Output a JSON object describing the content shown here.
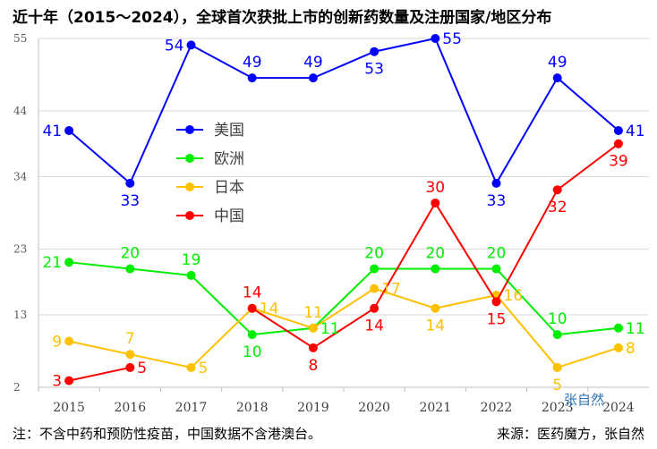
{
  "title": "近十年（2015～2024），全球首次获批上市的创新药数量及注册国家/地区分布",
  "footer": {
    "note": "注：不含中药和预防性疫苗，中国数据不含港澳台。",
    "source": "来源：医药魔方，张自然"
  },
  "watermark": "张自然",
  "chart_data": {
    "type": "line",
    "x": [
      "2015",
      "2016",
      "2017",
      "2018",
      "2019",
      "2020",
      "2021",
      "2022",
      "2023",
      "2024"
    ],
    "y_ticks": [
      2,
      13,
      23,
      34,
      44,
      55
    ],
    "ylim": [
      2,
      55
    ],
    "grid": "horizontal",
    "legend_position": "left-center",
    "series": [
      {
        "name": "美国",
        "color": "#0000ff",
        "values": [
          41,
          33,
          54,
          49,
          49,
          53,
          55,
          33,
          49,
          41
        ],
        "label_pos": [
          "l",
          "b",
          "l",
          "a",
          "a",
          "b",
          "r",
          "b",
          "a",
          "r"
        ]
      },
      {
        "name": "欧洲",
        "color": "#00ee00",
        "values": [
          21,
          20,
          19,
          10,
          11,
          20,
          20,
          20,
          10,
          11
        ],
        "label_pos": [
          "l",
          "a",
          "a",
          "b",
          "r",
          "a",
          "a",
          "a",
          "a",
          "r"
        ]
      },
      {
        "name": "日本",
        "color": "#ffc000",
        "values": [
          9,
          7,
          5,
          14,
          11,
          17,
          14,
          16,
          5,
          8
        ],
        "label_pos": [
          "l",
          "a",
          "r",
          "r",
          "a",
          "r",
          "b",
          "r",
          "b",
          "r"
        ]
      },
      {
        "name": "中国",
        "color": "#ff0000",
        "values": [
          3,
          5,
          null,
          14,
          8,
          14,
          30,
          15,
          32,
          39
        ],
        "label_pos": [
          "l",
          "r",
          null,
          "a",
          "b",
          "b",
          "a",
          "b",
          "b",
          "b"
        ]
      }
    ]
  }
}
